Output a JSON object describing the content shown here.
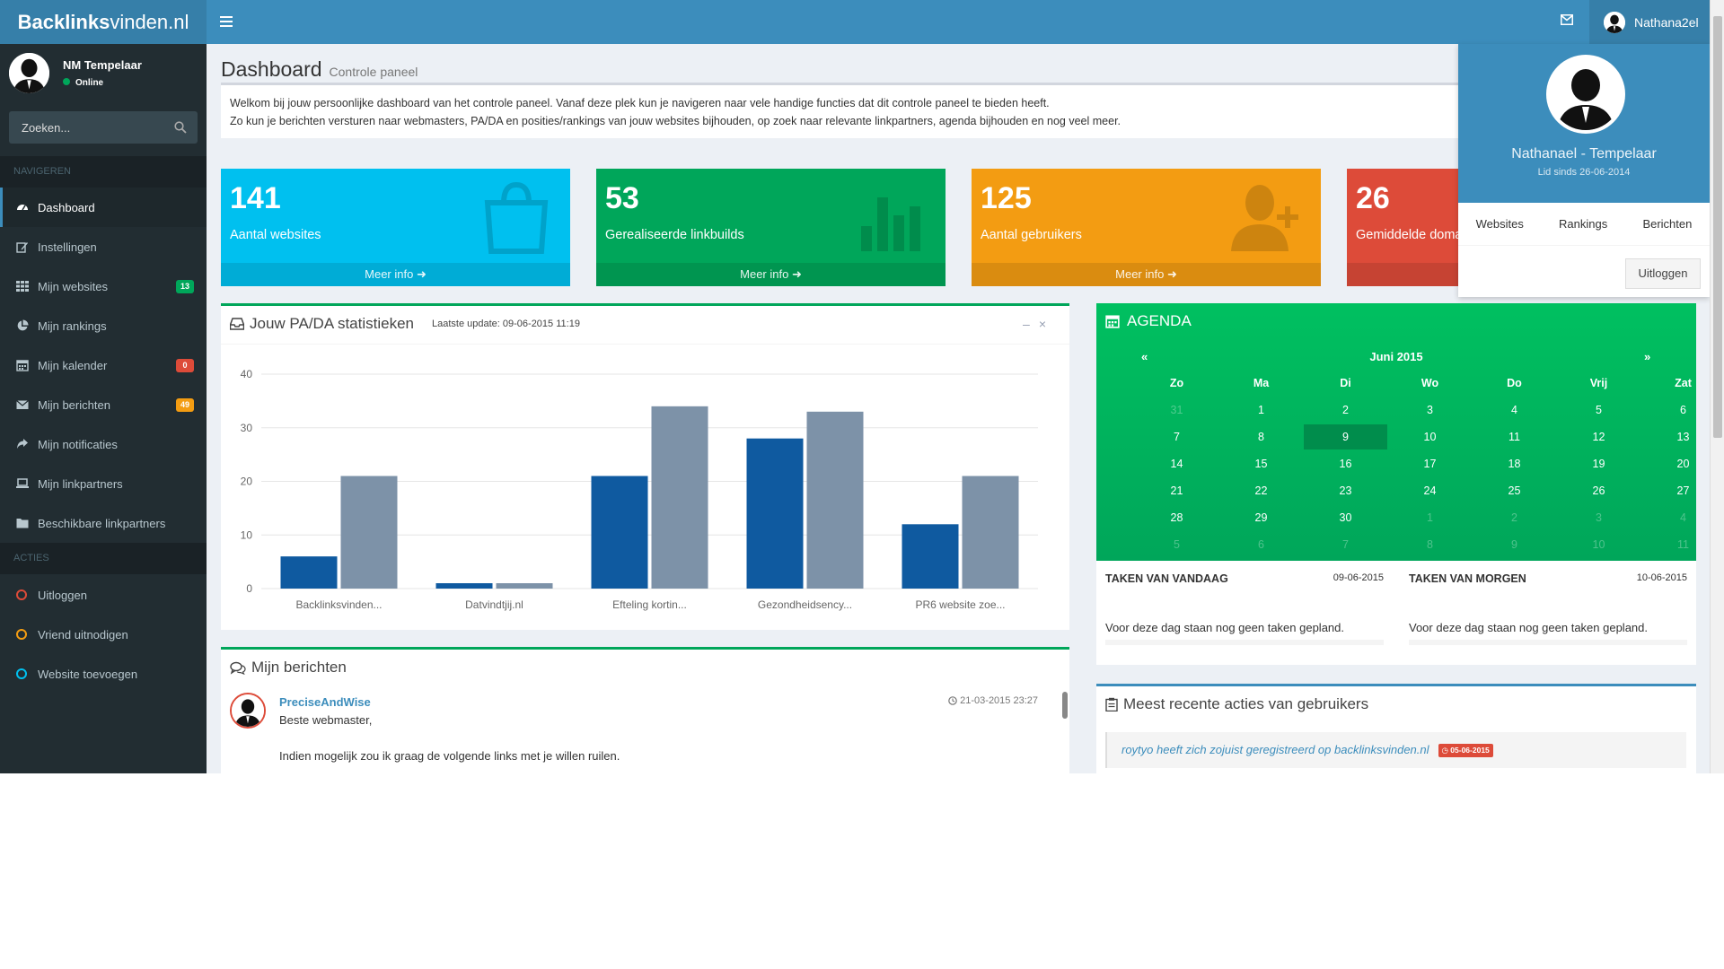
{
  "brand": {
    "bold": "Backlinks",
    "rest": "vinden.nl"
  },
  "topbar": {
    "username": "Nathana2el"
  },
  "sidebar": {
    "user_name": "NM Tempelaar",
    "user_status": "Online",
    "search_placeholder": "Zoeken...",
    "nav_header": "NAVIGEREN",
    "actions_header": "ACTIES",
    "items": [
      {
        "label": "Dashboard",
        "icon": "dashboard-icon"
      },
      {
        "label": "Instellingen",
        "icon": "edit-icon"
      },
      {
        "label": "Mijn websites",
        "icon": "grid-icon",
        "badge": "13",
        "badge_color": "#00a65a"
      },
      {
        "label": "Mijn rankings",
        "icon": "pie-chart-icon"
      },
      {
        "label": "Mijn kalender",
        "icon": "calendar-icon",
        "badge": "0",
        "badge_color": "#dd4b39"
      },
      {
        "label": "Mijn berichten",
        "icon": "envelope-icon",
        "badge": "49",
        "badge_color": "#f39c12"
      },
      {
        "label": "Mijn notificaties",
        "icon": "share-icon"
      },
      {
        "label": "Mijn linkpartners",
        "icon": "laptop-icon"
      },
      {
        "label": "Beschikbare linkpartners",
        "icon": "folder-icon"
      }
    ],
    "actions": [
      {
        "label": "Uitloggen",
        "color": "#dd4b39"
      },
      {
        "label": "Vriend uitnodigen",
        "color": "#f39c12"
      },
      {
        "label": "Website toevoegen",
        "color": "#00c0ef"
      }
    ]
  },
  "header": {
    "title": "Dashboard",
    "subtitle": "Controle paneel"
  },
  "welcome": {
    "line1": "Welkom bij jouw persoonlijke dashboard van het controle paneel. Vanaf deze plek kun je navigeren naar vele handige functies dat dit controle paneel te bieden heeft.",
    "line2": "Zo kun je berichten versturen naar webmasters, PA/DA en posities/rankings van jouw websites bijhouden, op zoek naar relevante linkpartners, agenda bijhouden en nog veel meer."
  },
  "stat_boxes": [
    {
      "value": "141",
      "label": "Aantal websites",
      "footer": "Meer info",
      "color": "#00c0ef",
      "icon": "shopping-bag-icon"
    },
    {
      "value": "53",
      "label": "Gerealiseerde linkbuilds",
      "footer": "Meer info",
      "color": "#00a65a",
      "icon": "bar-chart-icon"
    },
    {
      "value": "125",
      "label": "Aantal gebruikers",
      "footer": "Meer info",
      "color": "#f39c12",
      "icon": "user-add-icon"
    },
    {
      "value": "26",
      "label": "Gemiddelde doma",
      "footer": "",
      "color": "#dd4b39",
      "icon": ""
    }
  ],
  "pada": {
    "title": "Jouw PA/DA statistieken",
    "subtitle": "Laatste update: 09-06-2015 11:19"
  },
  "chart_data": {
    "type": "bar",
    "categories": [
      "Backlinksvinden...",
      "Datvindtjij.nl",
      "Efteling kortin...",
      "Gezondheidsency...",
      "PR6 website zoe..."
    ],
    "series": [
      {
        "values": [
          6,
          1,
          21,
          28,
          12
        ],
        "color": "#0f5aa0"
      },
      {
        "values": [
          21,
          1,
          34,
          33,
          21
        ],
        "color": "#7d92a8"
      }
    ],
    "yticks": [
      0,
      10,
      20,
      30,
      40
    ],
    "ylim": [
      0,
      40
    ],
    "grid": true
  },
  "messages": {
    "title": "Mijn berichten",
    "items": [
      {
        "author": "PreciseAndWise",
        "time": "21-03-2015 23:27",
        "greeting": "Beste webmaster,",
        "body": "Indien mogelijk zou ik graag de volgende links met je willen ruilen."
      }
    ]
  },
  "profile": {
    "name": "Nathanael - Tempelaar",
    "since": "Lid sinds 26-06-2014",
    "links": [
      "Websites",
      "Rankings",
      "Berichten"
    ],
    "logout": "Uitloggen"
  },
  "agenda": {
    "title": "AGENDA",
    "prev": "«",
    "next": "»",
    "month": "Juni 2015",
    "weekdays": [
      "Zo",
      "Ma",
      "Di",
      "Wo",
      "Do",
      "Vrij",
      "Zat"
    ],
    "weeks": [
      [
        "31",
        "1",
        "2",
        "3",
        "4",
        "5",
        "6"
      ],
      [
        "7",
        "8",
        "9",
        "10",
        "11",
        "12",
        "13"
      ],
      [
        "14",
        "15",
        "16",
        "17",
        "18",
        "19",
        "20"
      ],
      [
        "21",
        "22",
        "23",
        "24",
        "25",
        "26",
        "27"
      ],
      [
        "28",
        "29",
        "30",
        "1",
        "2",
        "3",
        "4"
      ],
      [
        "5",
        "6",
        "7",
        "8",
        "9",
        "10",
        "11"
      ]
    ],
    "today": "9",
    "tasks_today": {
      "title": "TAKEN VAN VANDAAG",
      "date": "09-06-2015",
      "text": "Voor deze dag staan nog geen taken gepland."
    },
    "tasks_tomorrow": {
      "title": "TAKEN VAN MORGEN",
      "date": "10-06-2015",
      "text": "Voor deze dag staan nog geen taken gepland."
    }
  },
  "recent": {
    "title": "Meest recente acties van gebruikers",
    "items": [
      {
        "text": "roytyo heeft zich zojuist geregistreerd op backlinksvinden.nl",
        "date": "05-06-2015"
      }
    ]
  }
}
